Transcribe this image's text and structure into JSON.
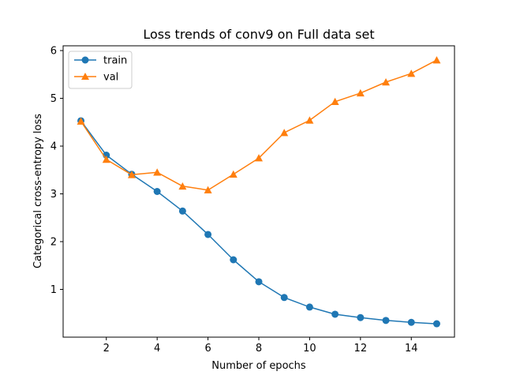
{
  "colors": {
    "train": "#1f77b4",
    "val": "#ff7f0e"
  },
  "chart_data": {
    "type": "line",
    "title": "Loss trends of conv9 on Full data set",
    "xlabel": "Number of epochs",
    "ylabel": "Categorical cross-entropy loss",
    "xlim": [
      0.3,
      15.7
    ],
    "ylim": [
      0.0,
      6.1
    ],
    "xticks": [
      2,
      4,
      6,
      8,
      10,
      12,
      14
    ],
    "yticks": [
      1,
      2,
      3,
      4,
      5,
      6
    ],
    "grid": false,
    "legend_position": "top-left",
    "x": [
      1,
      2,
      3,
      4,
      5,
      6,
      7,
      8,
      9,
      10,
      11,
      12,
      13,
      14,
      15
    ],
    "series": [
      {
        "name": "train",
        "marker": "circle",
        "values": [
          4.53,
          3.81,
          3.41,
          3.05,
          2.64,
          2.15,
          1.62,
          1.16,
          0.83,
          0.63,
          0.48,
          0.41,
          0.35,
          0.31,
          0.28
        ]
      },
      {
        "name": "val",
        "marker": "triangle",
        "values": [
          4.52,
          3.72,
          3.4,
          3.45,
          3.16,
          3.08,
          3.41,
          3.75,
          4.28,
          4.54,
          4.93,
          5.11,
          5.34,
          5.52,
          5.8
        ]
      }
    ]
  }
}
